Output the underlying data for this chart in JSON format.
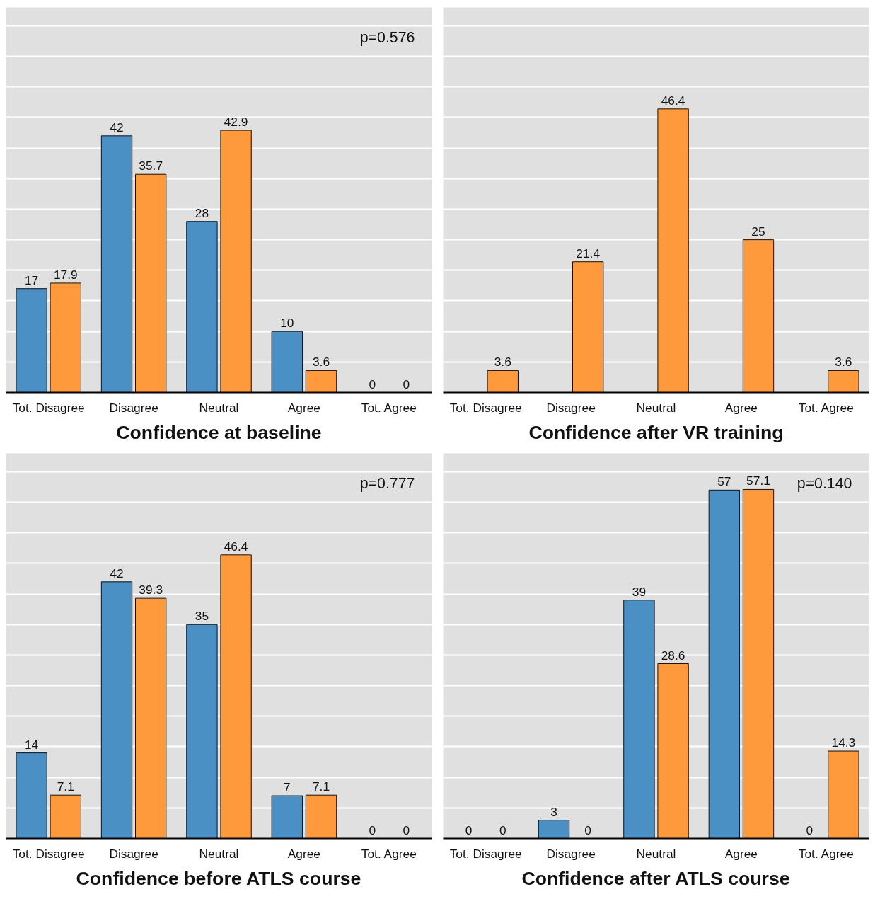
{
  "chart_data": [
    {
      "type": "bar",
      "title": "Confidence at baseline",
      "categories": [
        "Tot. Disagree",
        "Disagree",
        "Neutral",
        "Agree",
        "Tot. Agree"
      ],
      "series": [
        {
          "color": "#4a90c4",
          "values": [
            17,
            42,
            28,
            10,
            0
          ]
        },
        {
          "color": "#ff9a3c",
          "values": [
            17.9,
            35.7,
            42.9,
            3.6,
            0
          ]
        }
      ],
      "ylim": [
        0,
        63
      ],
      "yticks": [
        {
          "value": 0,
          "label": null
        },
        {
          "value": 5,
          "label": null
        },
        {
          "value": 10,
          "label": null
        },
        {
          "value": 15,
          "label": null
        },
        {
          "value": 20,
          "label": null
        },
        {
          "value": 25,
          "label": null
        },
        {
          "value": 30,
          "label": null
        },
        {
          "value": 35,
          "label": null
        },
        {
          "value": 40,
          "label": null
        },
        {
          "value": 45,
          "label": null
        },
        {
          "value": 50,
          "label": null
        },
        {
          "value": 55,
          "label": null
        },
        {
          "value": 60,
          "label": null
        }
      ],
      "tick_labels": "x",
      "grid": "y",
      "data_labels": true,
      "annotations": [
        "p=0.576"
      ]
    },
    {
      "type": "bar",
      "title": "Confidence after VR training",
      "categories": [
        "Tot. Disagree",
        "Disagree",
        "Neutral",
        "Agree",
        "Tot. Agree"
      ],
      "series": [
        {
          "color": "#4a90c4",
          "values": [
            null,
            null,
            null,
            null,
            null
          ]
        },
        {
          "color": "#ff9a3c",
          "values": [
            3.6,
            21.4,
            46.4,
            25,
            3.6
          ]
        }
      ],
      "ylim": [
        0,
        63
      ],
      "yticks": [
        {
          "value": 0,
          "label": null
        },
        {
          "value": 5,
          "label": null
        },
        {
          "value": 10,
          "label": null
        },
        {
          "value": 15,
          "label": null
        },
        {
          "value": 20,
          "label": null
        },
        {
          "value": 25,
          "label": null
        },
        {
          "value": 30,
          "label": null
        },
        {
          "value": 35,
          "label": null
        },
        {
          "value": 40,
          "label": null
        },
        {
          "value": 45,
          "label": null
        },
        {
          "value": 50,
          "label": null
        },
        {
          "value": 55,
          "label": null
        },
        {
          "value": 60,
          "label": null
        }
      ],
      "tick_labels": "x",
      "grid": "y",
      "data_labels": true
    },
    {
      "type": "bar",
      "title": "Confidence before ATLS course",
      "categories": [
        "Tot. Disagree",
        "Disagree",
        "Neutral",
        "Agree",
        "Tot. Agree"
      ],
      "series": [
        {
          "color": "#4a90c4",
          "values": [
            14,
            42,
            35,
            7,
            0
          ]
        },
        {
          "color": "#ff9a3c",
          "values": [
            7.1,
            39.3,
            46.4,
            7.1,
            0
          ]
        }
      ],
      "ylim": [
        0,
        63
      ],
      "yticks": [
        {
          "value": 0,
          "label": null
        },
        {
          "value": 5,
          "label": null
        },
        {
          "value": 10,
          "label": null
        },
        {
          "value": 15,
          "label": null
        },
        {
          "value": 20,
          "label": null
        },
        {
          "value": 25,
          "label": null
        },
        {
          "value": 30,
          "label": null
        },
        {
          "value": 35,
          "label": null
        },
        {
          "value": 40,
          "label": null
        },
        {
          "value": 45,
          "label": null
        },
        {
          "value": 50,
          "label": null
        },
        {
          "value": 55,
          "label": null
        },
        {
          "value": 60,
          "label": null
        }
      ],
      "tick_labels": "x",
      "grid": "y",
      "data_labels": true,
      "annotations": [
        "p=0.777"
      ]
    },
    {
      "type": "bar",
      "title": "Confidence after ATLS course",
      "categories": [
        "Tot. Disagree",
        "Disagree",
        "Neutral",
        "Agree",
        "Tot. Agree"
      ],
      "series": [
        {
          "color": "#4a90c4",
          "values": [
            0,
            3,
            39,
            57,
            0
          ]
        },
        {
          "color": "#ff9a3c",
          "values": [
            0,
            0,
            28.6,
            57.1,
            14.3
          ]
        }
      ],
      "ylim": [
        0,
        63
      ],
      "yticks": [
        {
          "value": 0,
          "label": null
        },
        {
          "value": 5,
          "label": null
        },
        {
          "value": 10,
          "label": null
        },
        {
          "value": 15,
          "label": null
        },
        {
          "value": 20,
          "label": null
        },
        {
          "value": 25,
          "label": null
        },
        {
          "value": 30,
          "label": null
        },
        {
          "value": 35,
          "label": null
        },
        {
          "value": 40,
          "label": null
        },
        {
          "value": 45,
          "label": null
        },
        {
          "value": 50,
          "label": null
        },
        {
          "value": 55,
          "label": null
        },
        {
          "value": 60,
          "label": null
        }
      ],
      "tick_labels": "x",
      "grid": "y",
      "data_labels": true,
      "annotations": [
        "p=0.140"
      ]
    }
  ]
}
